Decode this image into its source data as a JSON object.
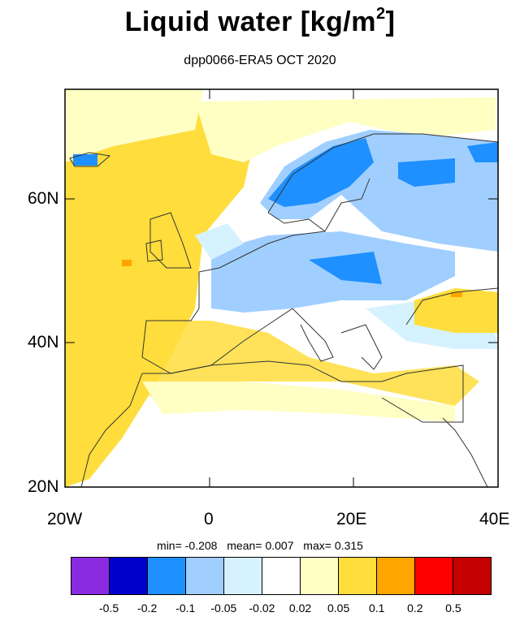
{
  "title": "Liquid water  [kg/m",
  "title_sup": "2",
  "title_close": "]",
  "subtitle": "dpp0066-ERA5 OCT 2020",
  "axes": {
    "lat_labels": [
      "60N",
      "40N",
      "20N"
    ],
    "lon_labels": [
      "20W",
      "0",
      "20E",
      "40E"
    ],
    "lon_range": [
      -20,
      40
    ],
    "lat_range": [
      20,
      75
    ]
  },
  "stats": {
    "min_label": "min=",
    "min": "-0.208",
    "mean_label": "mean=",
    "mean": "0.007",
    "max_label": "max=",
    "max": "0.315"
  },
  "colorbar": {
    "colors": [
      "#8a2be2",
      "#0000cd",
      "#1e90ff",
      "#a0cfff",
      "#d6f2ff",
      "#ffffff",
      "#ffffc4",
      "#ffdd3c",
      "#ffa500",
      "#ff0000",
      "#c40000"
    ],
    "labels": [
      "-0.5",
      "-0.2",
      "-0.1",
      "-0.05",
      "-0.02",
      "0.02",
      "0.05",
      "0.1",
      "0.2",
      "0.5"
    ]
  }
}
